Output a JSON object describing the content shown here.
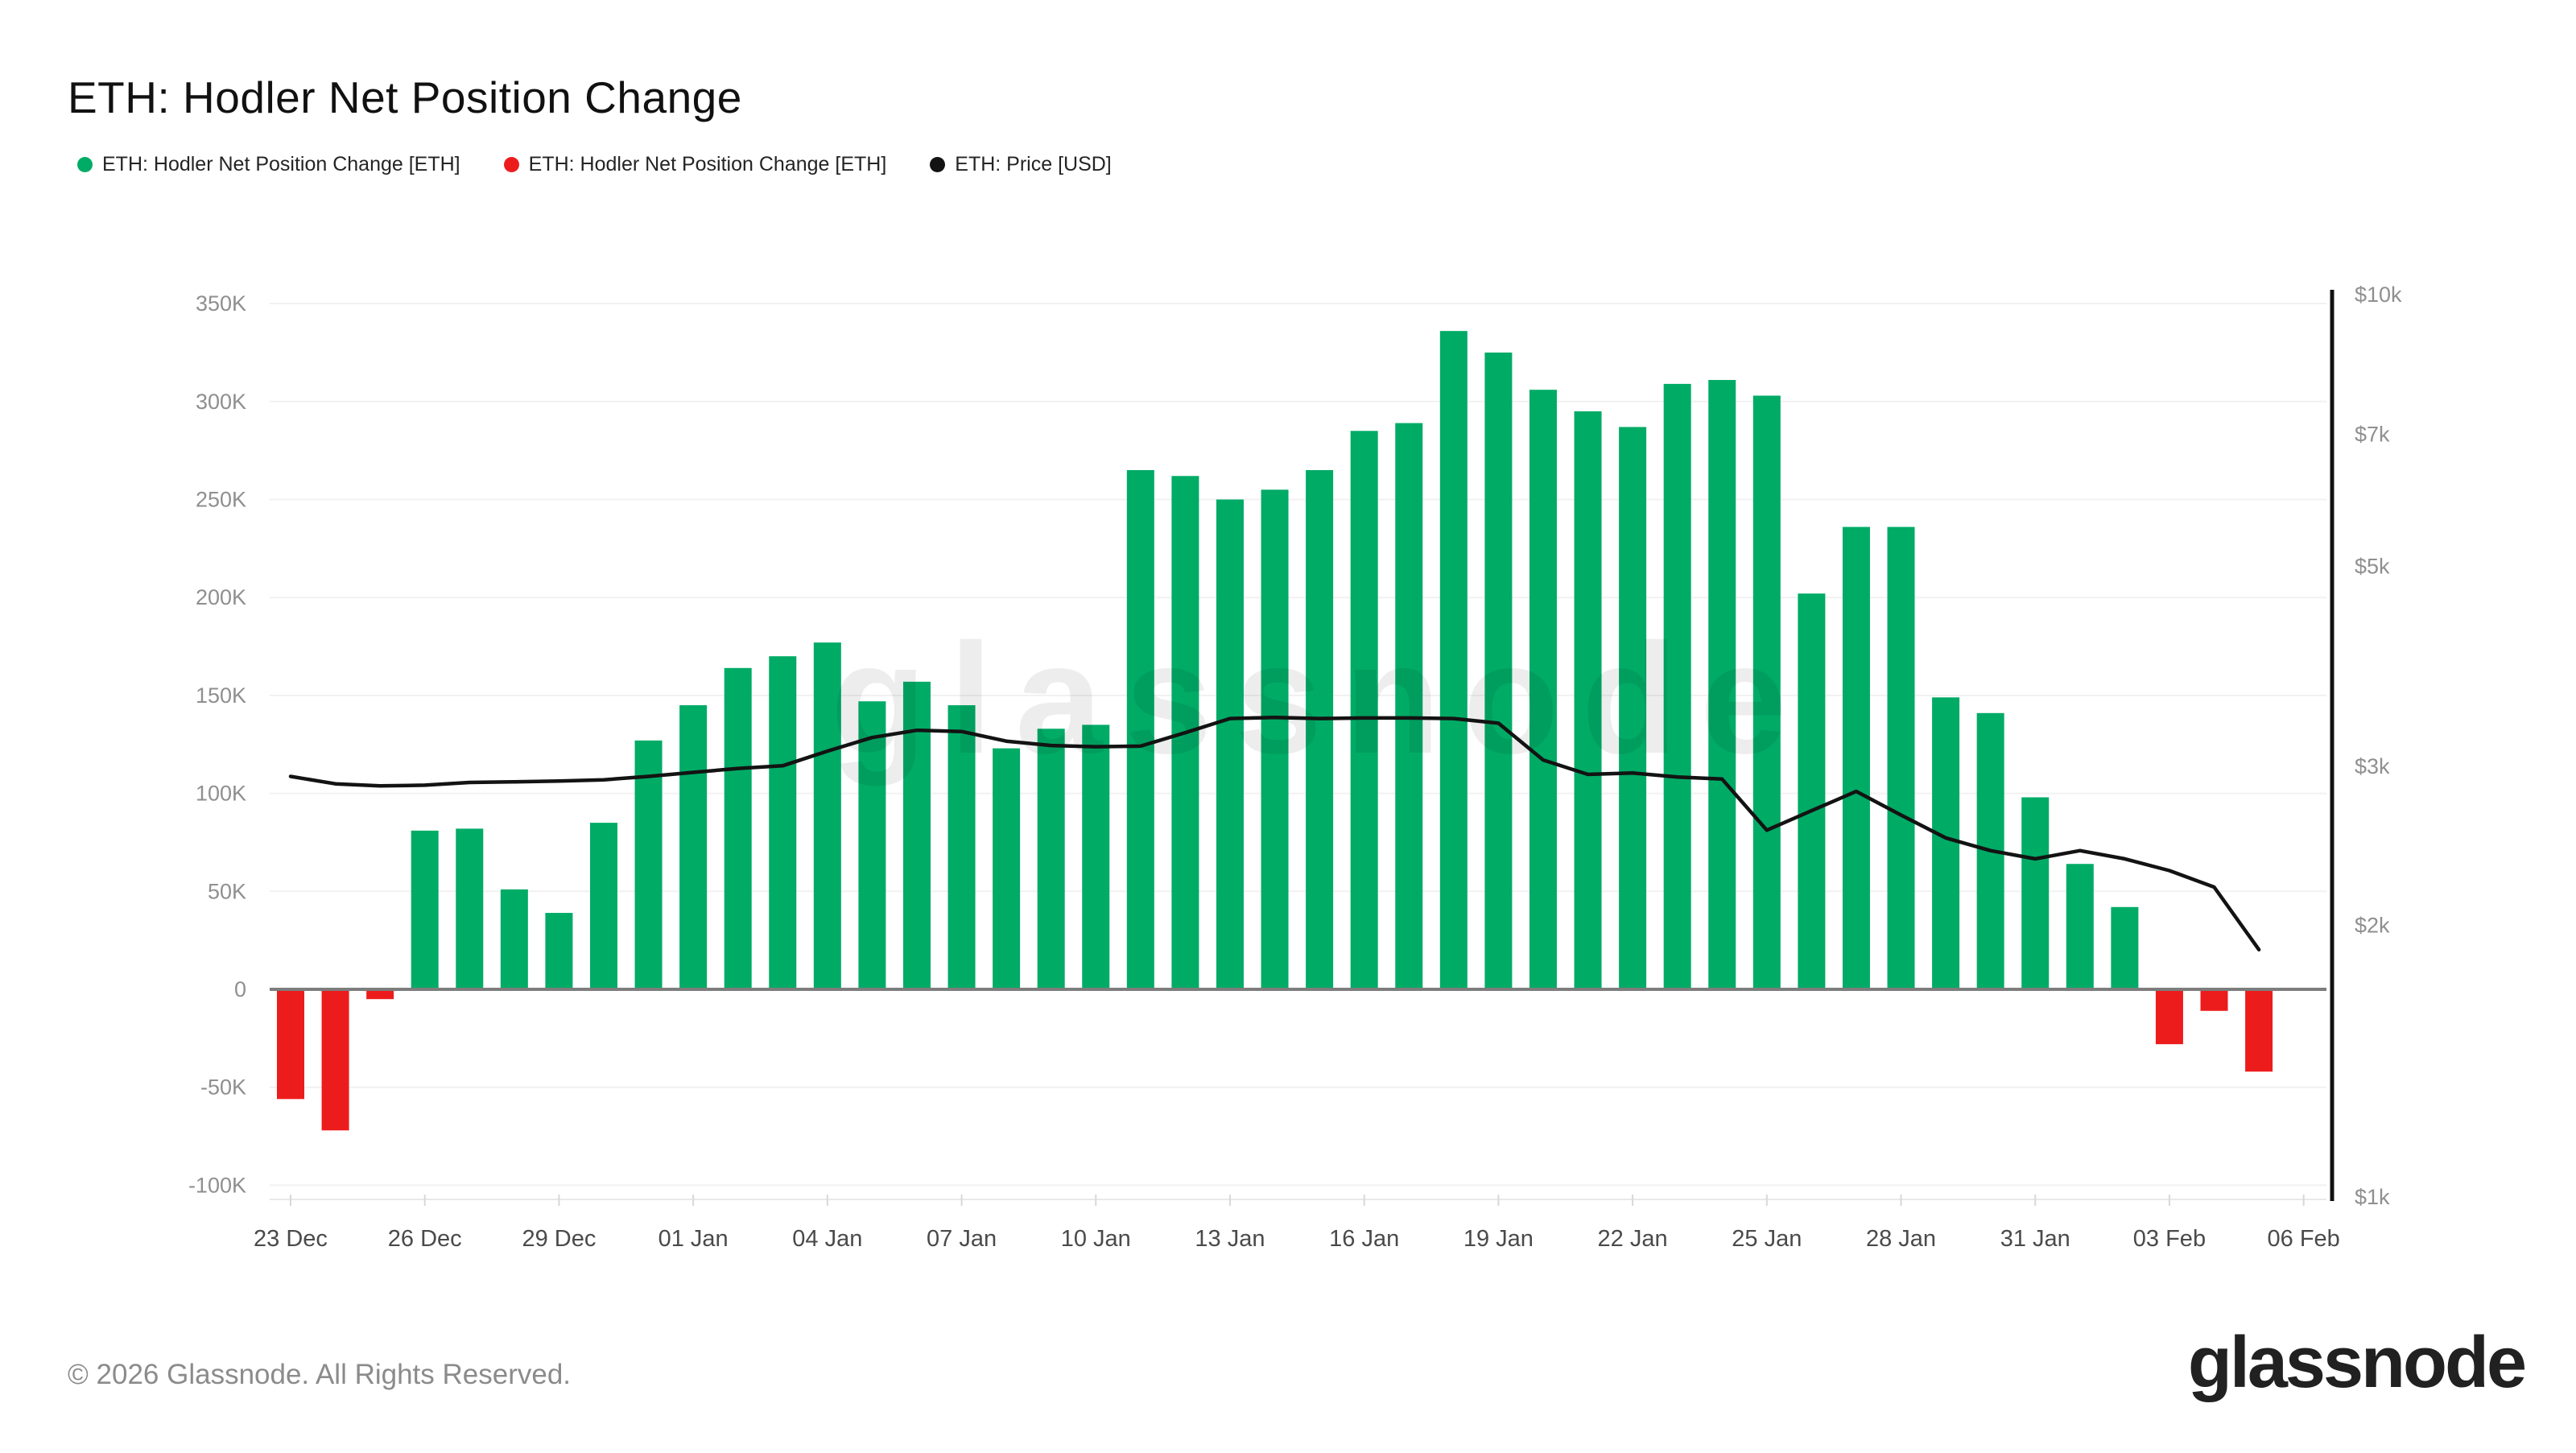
{
  "header": {
    "title": "ETH: Hodler Net Position Change"
  },
  "legend": [
    {
      "label": "ETH: Hodler Net Position Change [ETH]",
      "color": "#00ab66"
    },
    {
      "label": "ETH: Hodler Net Position Change [ETH]",
      "color": "#ed1c1c"
    },
    {
      "label": "ETH: Price [USD]",
      "color": "#131313"
    }
  ],
  "watermark": "glassnode",
  "footer": {
    "copyright": "© 2026 Glassnode. All Rights Reserved.",
    "brand": "glassnode"
  },
  "colors": {
    "bar_positive": "#00ab66",
    "bar_negative": "#ed1c1c",
    "price_line": "#131313",
    "gridline": "#f1f1f1",
    "zero_line": "#7d7d7d",
    "right_axis_line": "#111111",
    "tick_mark": "#d8d8d8",
    "plot_bottom_border": "#e8e8e8"
  },
  "chart_data": {
    "type": "bar+line",
    "title": "ETH: Hodler Net Position Change",
    "categories": [
      "23 Dec",
      "24 Dec",
      "25 Dec",
      "26 Dec",
      "27 Dec",
      "28 Dec",
      "29 Dec",
      "30 Dec",
      "31 Dec",
      "01 Jan",
      "02 Jan",
      "03 Jan",
      "04 Jan",
      "05 Jan",
      "06 Jan",
      "07 Jan",
      "08 Jan",
      "09 Jan",
      "10 Jan",
      "11 Jan",
      "12 Jan",
      "13 Jan",
      "14 Jan",
      "15 Jan",
      "16 Jan",
      "17 Jan",
      "18 Jan",
      "19 Jan",
      "20 Jan",
      "21 Jan",
      "22 Jan",
      "23 Jan",
      "24 Jan",
      "25 Jan",
      "26 Jan",
      "27 Jan",
      "28 Jan",
      "29 Jan",
      "30 Jan",
      "31 Jan",
      "01 Feb",
      "02 Feb",
      "03 Feb",
      "04 Feb",
      "05 Feb"
    ],
    "series": [
      {
        "name": "ETH: Hodler Net Position Change [ETH]",
        "type": "bar",
        "axis": "left",
        "unit": "ETH",
        "color_positive": "#00ab66",
        "color_negative": "#ed1c1c",
        "values": [
          -56000,
          -72000,
          -5000,
          81000,
          82000,
          51000,
          39000,
          85000,
          127000,
          145000,
          164000,
          170000,
          177000,
          147000,
          157000,
          145000,
          123000,
          133000,
          135000,
          265000,
          262000,
          250000,
          255000,
          265000,
          285000,
          289000,
          336000,
          325000,
          306000,
          295000,
          287000,
          309000,
          311000,
          303000,
          202000,
          236000,
          236000,
          149000,
          141000,
          98000,
          64000,
          42000,
          -28000,
          -11000,
          -42000
        ]
      },
      {
        "name": "ETH: Price [USD]",
        "type": "line",
        "axis": "right",
        "unit": "USD",
        "color": "#131313",
        "values": [
          2925,
          2870,
          2855,
          2860,
          2880,
          2885,
          2890,
          2900,
          2925,
          2955,
          2985,
          3005,
          3120,
          3230,
          3290,
          3280,
          3200,
          3165,
          3155,
          3160,
          3270,
          3390,
          3400,
          3390,
          3395,
          3395,
          3390,
          3350,
          3050,
          2940,
          2950,
          2920,
          2905,
          2550,
          2680,
          2815,
          2650,
          2500,
          2420,
          2370,
          2420,
          2370,
          2300,
          2205,
          1880
        ]
      }
    ],
    "left_axis": {
      "range": [
        -100000,
        350000
      ],
      "grid": true,
      "ticks": [
        {
          "v": 350000,
          "label": "350K"
        },
        {
          "v": 300000,
          "label": "300K"
        },
        {
          "v": 250000,
          "label": "250K"
        },
        {
          "v": 200000,
          "label": "200K"
        },
        {
          "v": 150000,
          "label": "150K"
        },
        {
          "v": 100000,
          "label": "100K"
        },
        {
          "v": 50000,
          "label": "50K"
        },
        {
          "v": 0,
          "label": "0"
        },
        {
          "v": -50000,
          "label": "-50K"
        },
        {
          "v": -100000,
          "label": "-100K"
        }
      ]
    },
    "right_axis": {
      "scale": "log",
      "range": [
        1000,
        10000
      ],
      "ticks": [
        {
          "v": 10000,
          "label": "$10k"
        },
        {
          "v": 7000,
          "label": "$7k"
        },
        {
          "v": 5000,
          "label": "$5k"
        },
        {
          "v": 3000,
          "label": "$3k"
        },
        {
          "v": 2000,
          "label": "$2k"
        },
        {
          "v": 1000,
          "label": "$1k"
        }
      ]
    },
    "x_axis": {
      "tick_step": 3,
      "tick_labels": [
        "23 Dec",
        "26 Dec",
        "29 Dec",
        "01 Jan",
        "04 Jan",
        "07 Jan",
        "10 Jan",
        "13 Jan",
        "16 Jan",
        "19 Jan",
        "22 Jan",
        "25 Jan",
        "28 Jan",
        "31 Jan",
        "03 Feb",
        "06 Feb"
      ]
    },
    "legend_position": "top-left"
  }
}
